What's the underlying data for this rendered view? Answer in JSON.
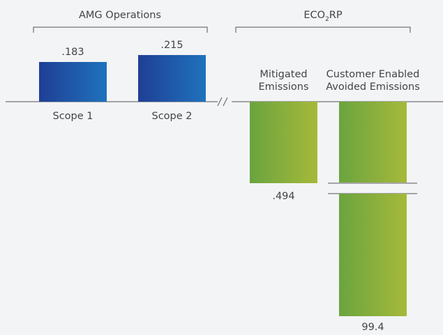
{
  "chart_data": {
    "type": "bar",
    "colors": {
      "blue_start": "#1f3f95",
      "blue_end": "#1f72bd",
      "green_start": "#6aa43f",
      "green_end": "#a6b93a",
      "axis": "#555555",
      "text": "#444444"
    },
    "groups": [
      {
        "label": "AMG Operations",
        "bars": [
          {
            "category": "Scope 1",
            "value": 0.183,
            "value_label": ".183",
            "direction": "up",
            "color": "blue"
          },
          {
            "category": "Scope 2",
            "value": 0.215,
            "value_label": ".215",
            "direction": "up",
            "color": "blue"
          }
        ]
      },
      {
        "label_parts": [
          "ECO",
          "2",
          "RP"
        ],
        "bars": [
          {
            "category_lines": [
              "Mitigated",
              "Emissions"
            ],
            "value": 0.494,
            "value_label": ".494",
            "direction": "down",
            "color": "green"
          },
          {
            "category_lines": [
              "Customer Enabled",
              "Avoided Emissions"
            ],
            "value": 99.4,
            "value_label": "99.4",
            "direction": "down",
            "color": "green",
            "axis_break": true
          }
        ]
      }
    ]
  }
}
